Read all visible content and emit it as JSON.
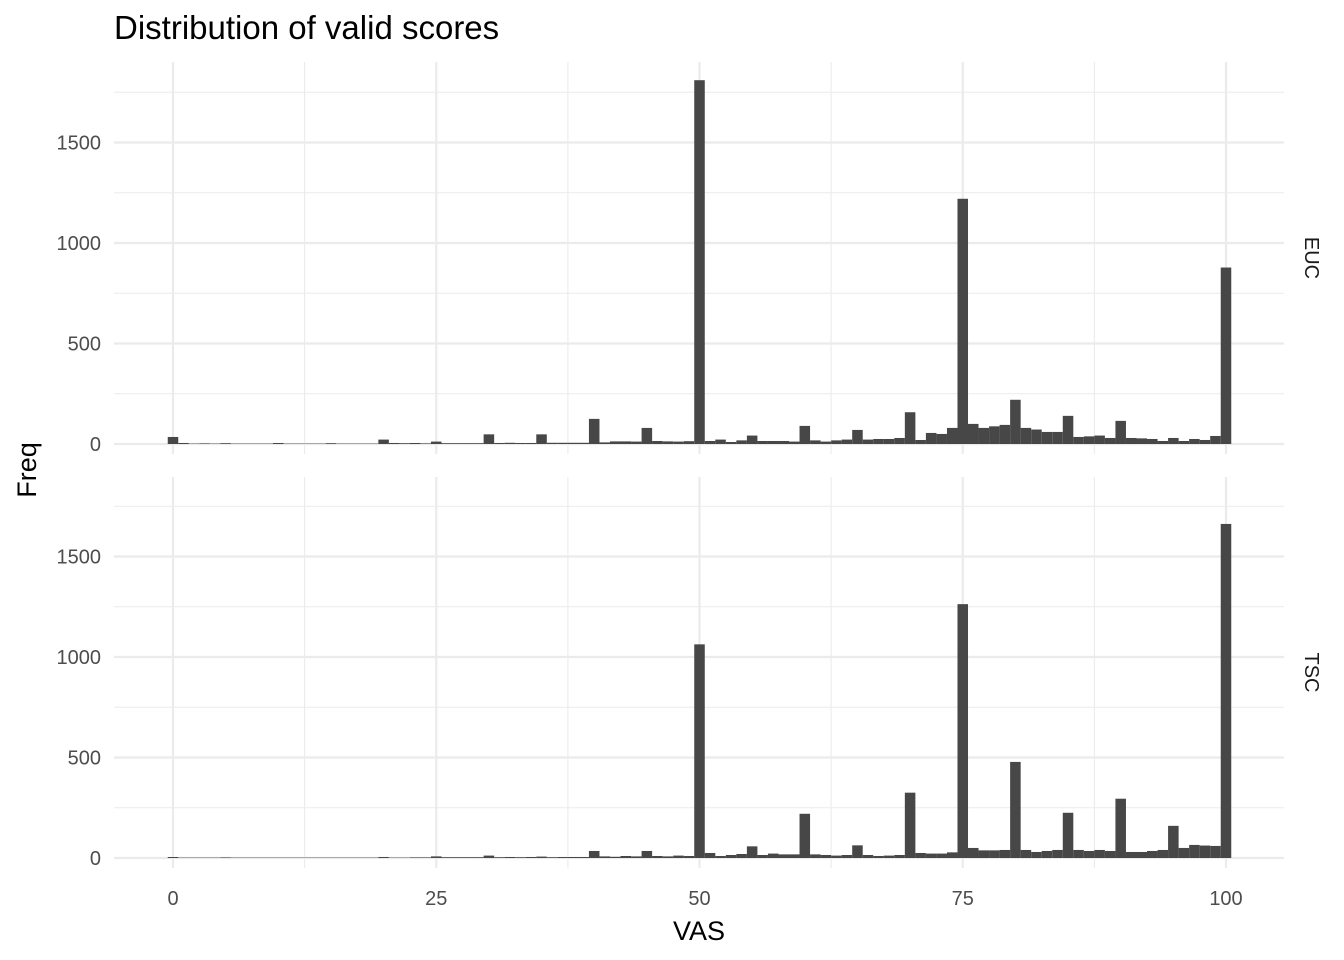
{
  "chart_data": {
    "type": "bar",
    "title": "Distribution of valid scores",
    "xlabel": "VAS",
    "ylabel": "Freq",
    "xlim": [
      -5,
      103
    ],
    "ylim": [
      0,
      1850
    ],
    "x_ticks": [
      "0",
      "25",
      "50",
      "75",
      "100"
    ],
    "y_ticks": [
      "0",
      "500",
      "1000",
      "1500"
    ],
    "grid": true,
    "bar_color": "#474747",
    "facets": [
      {
        "label": "EUC",
        "bars": [
          [
            0,
            35
          ],
          [
            1,
            5
          ],
          [
            2,
            2
          ],
          [
            3,
            3
          ],
          [
            4,
            2
          ],
          [
            5,
            4
          ],
          [
            6,
            2
          ],
          [
            7,
            2
          ],
          [
            8,
            2
          ],
          [
            9,
            2
          ],
          [
            10,
            5
          ],
          [
            11,
            2
          ],
          [
            12,
            2
          ],
          [
            13,
            2
          ],
          [
            14,
            2
          ],
          [
            15,
            4
          ],
          [
            16,
            2
          ],
          [
            17,
            2
          ],
          [
            18,
            2
          ],
          [
            19,
            2
          ],
          [
            20,
            22
          ],
          [
            21,
            5
          ],
          [
            22,
            4
          ],
          [
            23,
            5
          ],
          [
            24,
            3
          ],
          [
            25,
            12
          ],
          [
            26,
            4
          ],
          [
            27,
            4
          ],
          [
            28,
            4
          ],
          [
            29,
            4
          ],
          [
            30,
            48
          ],
          [
            31,
            5
          ],
          [
            32,
            6
          ],
          [
            33,
            5
          ],
          [
            34,
            5
          ],
          [
            35,
            48
          ],
          [
            36,
            6
          ],
          [
            37,
            6
          ],
          [
            38,
            6
          ],
          [
            39,
            6
          ],
          [
            40,
            125
          ],
          [
            41,
            8
          ],
          [
            42,
            13
          ],
          [
            43,
            13
          ],
          [
            44,
            12
          ],
          [
            45,
            80
          ],
          [
            46,
            15
          ],
          [
            47,
            13
          ],
          [
            48,
            12
          ],
          [
            49,
            14
          ],
          [
            50,
            1810
          ],
          [
            51,
            15
          ],
          [
            52,
            22
          ],
          [
            53,
            10
          ],
          [
            54,
            18
          ],
          [
            55,
            42
          ],
          [
            56,
            15
          ],
          [
            57,
            15
          ],
          [
            58,
            15
          ],
          [
            59,
            12
          ],
          [
            60,
            90
          ],
          [
            61,
            18
          ],
          [
            62,
            12
          ],
          [
            63,
            18
          ],
          [
            64,
            22
          ],
          [
            65,
            70
          ],
          [
            66,
            22
          ],
          [
            67,
            25
          ],
          [
            68,
            25
          ],
          [
            69,
            30
          ],
          [
            70,
            158
          ],
          [
            71,
            20
          ],
          [
            72,
            55
          ],
          [
            73,
            50
          ],
          [
            74,
            80
          ],
          [
            75,
            1220
          ],
          [
            76,
            100
          ],
          [
            77,
            80
          ],
          [
            78,
            88
          ],
          [
            79,
            95
          ],
          [
            80,
            220
          ],
          [
            81,
            80
          ],
          [
            82,
            72
          ],
          [
            83,
            60
          ],
          [
            84,
            60
          ],
          [
            85,
            140
          ],
          [
            86,
            35
          ],
          [
            87,
            38
          ],
          [
            88,
            42
          ],
          [
            89,
            30
          ],
          [
            90,
            115
          ],
          [
            91,
            30
          ],
          [
            92,
            28
          ],
          [
            93,
            25
          ],
          [
            94,
            15
          ],
          [
            95,
            30
          ],
          [
            96,
            15
          ],
          [
            97,
            25
          ],
          [
            98,
            20
          ],
          [
            99,
            40
          ],
          [
            100,
            878
          ]
        ]
      },
      {
        "label": "TSC",
        "bars": [
          [
            0,
            5
          ],
          [
            1,
            2
          ],
          [
            2,
            2
          ],
          [
            3,
            2
          ],
          [
            4,
            2
          ],
          [
            5,
            3
          ],
          [
            6,
            2
          ],
          [
            7,
            2
          ],
          [
            8,
            2
          ],
          [
            9,
            2
          ],
          [
            10,
            2
          ],
          [
            11,
            2
          ],
          [
            12,
            2
          ],
          [
            13,
            2
          ],
          [
            14,
            2
          ],
          [
            15,
            2
          ],
          [
            16,
            2
          ],
          [
            17,
            2
          ],
          [
            18,
            2
          ],
          [
            19,
            2
          ],
          [
            20,
            5
          ],
          [
            21,
            2
          ],
          [
            22,
            2
          ],
          [
            23,
            3
          ],
          [
            24,
            3
          ],
          [
            25,
            8
          ],
          [
            26,
            4
          ],
          [
            27,
            4
          ],
          [
            28,
            4
          ],
          [
            29,
            4
          ],
          [
            30,
            12
          ],
          [
            31,
            4
          ],
          [
            32,
            5
          ],
          [
            33,
            4
          ],
          [
            34,
            5
          ],
          [
            35,
            7
          ],
          [
            36,
            4
          ],
          [
            37,
            5
          ],
          [
            38,
            5
          ],
          [
            39,
            5
          ],
          [
            40,
            35
          ],
          [
            41,
            8
          ],
          [
            42,
            6
          ],
          [
            43,
            10
          ],
          [
            44,
            8
          ],
          [
            45,
            35
          ],
          [
            46,
            10
          ],
          [
            47,
            8
          ],
          [
            48,
            12
          ],
          [
            49,
            10
          ],
          [
            50,
            1063
          ],
          [
            51,
            25
          ],
          [
            52,
            10
          ],
          [
            53,
            15
          ],
          [
            54,
            20
          ],
          [
            55,
            58
          ],
          [
            56,
            15
          ],
          [
            57,
            22
          ],
          [
            58,
            18
          ],
          [
            59,
            18
          ],
          [
            60,
            220
          ],
          [
            61,
            18
          ],
          [
            62,
            15
          ],
          [
            63,
            12
          ],
          [
            64,
            15
          ],
          [
            65,
            63
          ],
          [
            66,
            15
          ],
          [
            67,
            10
          ],
          [
            68,
            12
          ],
          [
            69,
            15
          ],
          [
            70,
            325
          ],
          [
            71,
            25
          ],
          [
            72,
            22
          ],
          [
            73,
            22
          ],
          [
            74,
            28
          ],
          [
            75,
            1263
          ],
          [
            76,
            50
          ],
          [
            77,
            38
          ],
          [
            78,
            38
          ],
          [
            79,
            40
          ],
          [
            80,
            478
          ],
          [
            81,
            40
          ],
          [
            82,
            30
          ],
          [
            83,
            35
          ],
          [
            84,
            40
          ],
          [
            85,
            225
          ],
          [
            86,
            40
          ],
          [
            87,
            35
          ],
          [
            88,
            40
          ],
          [
            89,
            35
          ],
          [
            90,
            295
          ],
          [
            91,
            30
          ],
          [
            92,
            30
          ],
          [
            93,
            35
          ],
          [
            94,
            40
          ],
          [
            95,
            160
          ],
          [
            96,
            50
          ],
          [
            97,
            65
          ],
          [
            98,
            62
          ],
          [
            99,
            60
          ],
          [
            100,
            1662
          ]
        ]
      }
    ]
  }
}
